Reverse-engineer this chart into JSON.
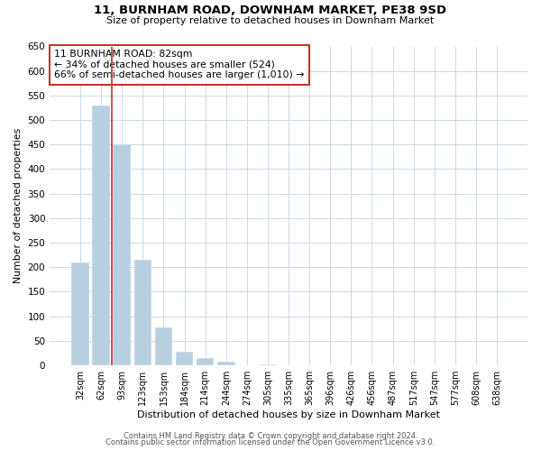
{
  "title": "11, BURNHAM ROAD, DOWNHAM MARKET, PE38 9SD",
  "subtitle": "Size of property relative to detached houses in Downham Market",
  "xlabel": "Distribution of detached houses by size in Downham Market",
  "ylabel": "Number of detached properties",
  "bar_labels": [
    "32sqm",
    "62sqm",
    "93sqm",
    "123sqm",
    "153sqm",
    "184sqm",
    "214sqm",
    "244sqm",
    "274sqm",
    "305sqm",
    "335sqm",
    "365sqm",
    "396sqm",
    "426sqm",
    "456sqm",
    "487sqm",
    "517sqm",
    "547sqm",
    "577sqm",
    "608sqm",
    "638sqm"
  ],
  "bar_values": [
    210,
    530,
    450,
    215,
    78,
    27,
    15,
    8,
    0,
    2,
    0,
    0,
    1,
    0,
    0,
    1,
    0,
    0,
    0,
    1,
    1
  ],
  "bar_color": "#b8cfe0",
  "highlight_color": "#c0392b",
  "annotation_title": "11 BURNHAM ROAD: 82sqm",
  "annotation_line1": "← 34% of detached houses are smaller (524)",
  "annotation_line2": "66% of semi-detached houses are larger (1,010) →",
  "annotation_box_color": "#ffffff",
  "annotation_box_edge": "#c0392b",
  "vline_color": "#c0392b",
  "vline_x": 1.5,
  "ylim": [
    0,
    650
  ],
  "yticks": [
    0,
    50,
    100,
    150,
    200,
    250,
    300,
    350,
    400,
    450,
    500,
    550,
    600,
    650
  ],
  "footer1": "Contains HM Land Registry data © Crown copyright and database right 2024.",
  "footer2": "Contains public sector information licensed under the Open Government Licence v3.0.",
  "bg_color": "#ffffff",
  "grid_color": "#ccd8e4"
}
